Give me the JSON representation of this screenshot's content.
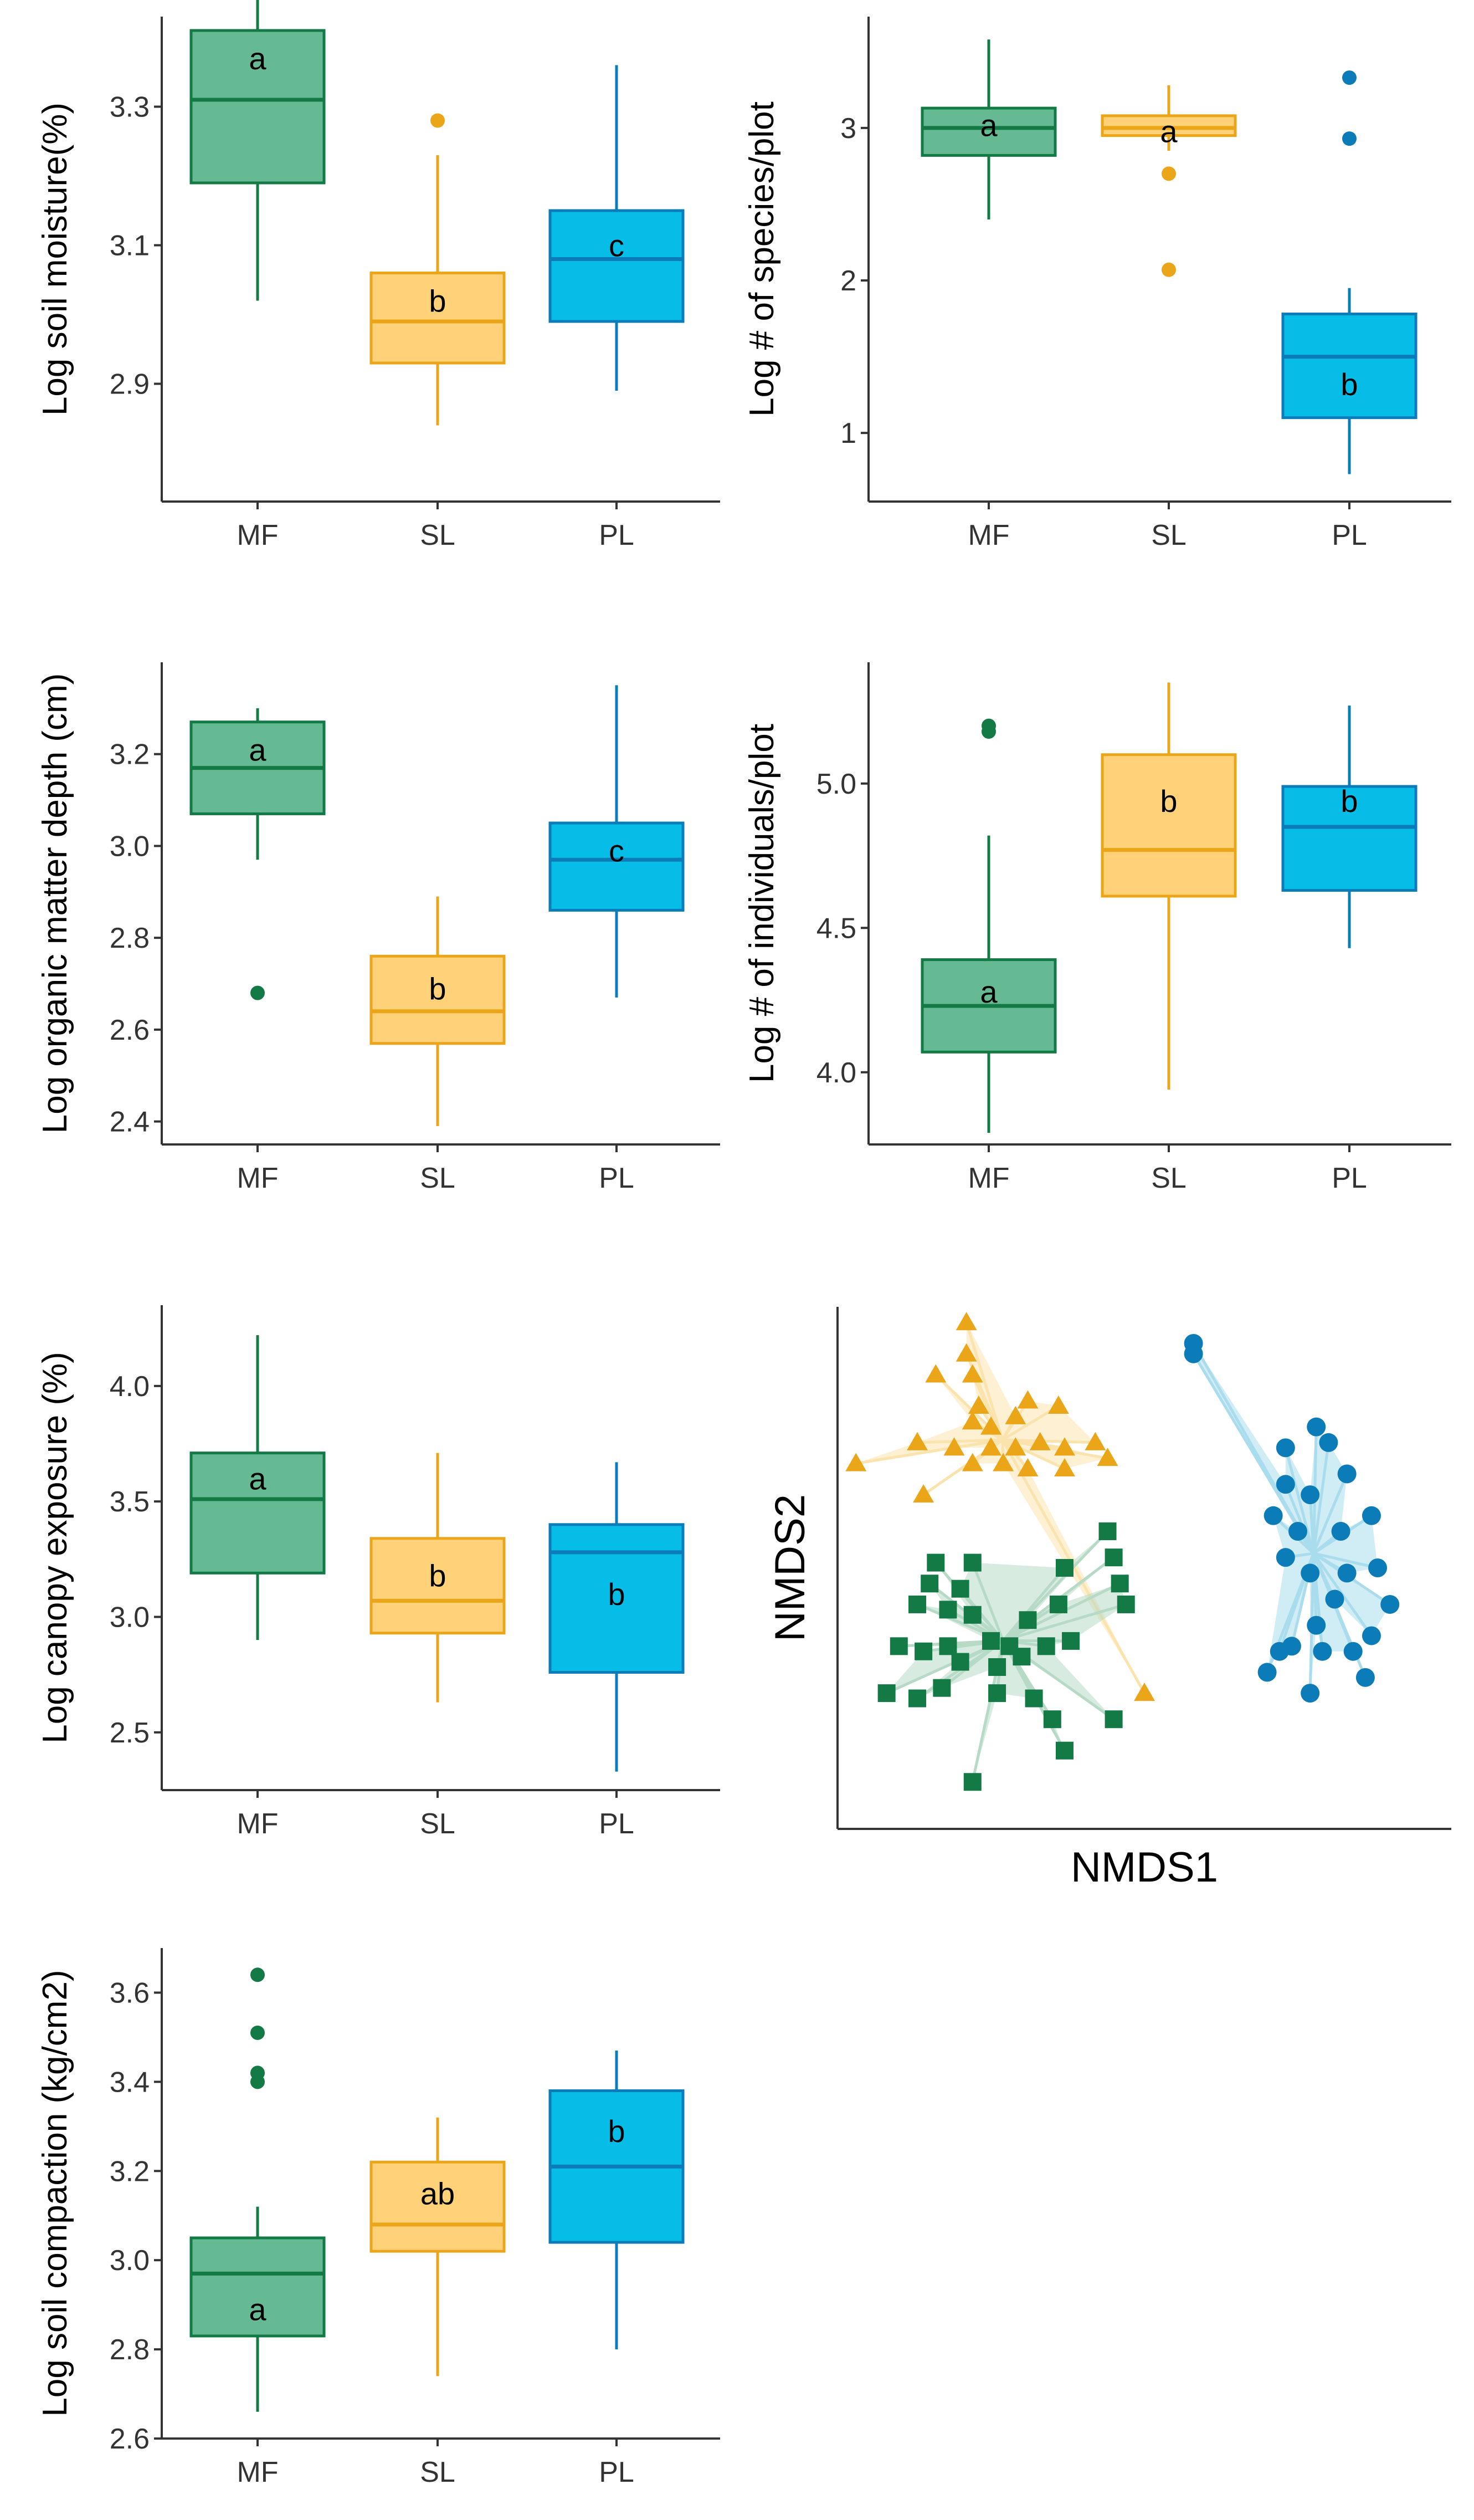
{
  "colors": {
    "MF": {
      "fill": "#65b993",
      "line": "#137a45",
      "hull": "#b7dac7"
    },
    "SL": {
      "fill": "#ffd27a",
      "line": "#eaa618",
      "hull": "#fbe3ae"
    },
    "PL": {
      "fill": "#06bde8",
      "line": "#0b7cb7",
      "hull": "#a9dced"
    }
  },
  "chart_data": [
    {
      "id": "soil-moisture",
      "type": "box",
      "ylabel": "Log soil moisture(%)",
      "categories": [
        "MF",
        "SL",
        "PL"
      ],
      "ylim": [
        2.73,
        3.43
      ],
      "yticks": [
        "2.9",
        "3.1",
        "3.3"
      ],
      "boxes": [
        {
          "group": "MF",
          "min": 3.02,
          "q1": 3.19,
          "median": 3.31,
          "q3": 3.41,
          "max": 3.46,
          "outliers": [],
          "letter": "a",
          "letter_y": 3.37
        },
        {
          "group": "SL",
          "min": 2.84,
          "q1": 2.93,
          "median": 2.99,
          "q3": 3.06,
          "max": 3.23,
          "outliers": [
            3.28
          ],
          "letter": "b",
          "letter_y": 3.02
        },
        {
          "group": "PL",
          "min": 2.89,
          "q1": 2.99,
          "median": 3.08,
          "q3": 3.15,
          "max": 3.36,
          "outliers": [],
          "letter": "c",
          "letter_y": 3.1
        }
      ]
    },
    {
      "id": "species-per-plot",
      "type": "box",
      "ylabel": "Log # of species/plot",
      "categories": [
        "MF",
        "SL",
        "PL"
      ],
      "ylim": [
        0.55,
        3.73
      ],
      "yticks": [
        "1",
        "2",
        "3"
      ],
      "boxes": [
        {
          "group": "MF",
          "min": 2.4,
          "q1": 2.82,
          "median": 3.0,
          "q3": 3.13,
          "max": 3.58,
          "outliers": [],
          "letter": "a",
          "letter_y": 3.02
        },
        {
          "group": "SL",
          "min": 2.85,
          "q1": 2.95,
          "median": 3.0,
          "q3": 3.08,
          "max": 3.28,
          "outliers": [
            2.7,
            2.07
          ],
          "letter": "a",
          "letter_y": 2.98
        },
        {
          "group": "PL",
          "min": 0.73,
          "q1": 1.1,
          "median": 1.5,
          "q3": 1.78,
          "max": 1.95,
          "outliers": [
            3.33,
            2.93
          ],
          "letter": "b",
          "letter_y": 1.32
        }
      ]
    },
    {
      "id": "organic-matter-depth",
      "type": "box",
      "ylabel": "Log organic matter depth (cm)",
      "categories": [
        "MF",
        "SL",
        "PL"
      ],
      "ylim": [
        2.35,
        3.4
      ],
      "yticks": [
        "2.4",
        "2.6",
        "2.8",
        "3.0",
        "3.2"
      ],
      "boxes": [
        {
          "group": "MF",
          "min": 2.97,
          "q1": 3.07,
          "median": 3.17,
          "q3": 3.27,
          "max": 3.3,
          "outliers": [
            2.68
          ],
          "letter": "a",
          "letter_y": 3.21
        },
        {
          "group": "SL",
          "min": 2.39,
          "q1": 2.57,
          "median": 2.64,
          "q3": 2.76,
          "max": 2.89,
          "outliers": [],
          "letter": "b",
          "letter_y": 2.69
        },
        {
          "group": "PL",
          "min": 2.67,
          "q1": 2.86,
          "median": 2.97,
          "q3": 3.05,
          "max": 3.35,
          "outliers": [],
          "letter": "c",
          "letter_y": 2.99
        }
      ]
    },
    {
      "id": "individuals-per-plot",
      "type": "box",
      "ylabel": "Log # of individuals/plot",
      "categories": [
        "MF",
        "SL",
        "PL"
      ],
      "ylim": [
        3.75,
        5.42
      ],
      "yticks": [
        "4.0",
        "4.5",
        "5.0"
      ],
      "boxes": [
        {
          "group": "MF",
          "min": 3.79,
          "q1": 4.07,
          "median": 4.23,
          "q3": 4.39,
          "max": 4.82,
          "outliers": [
            5.2,
            5.18
          ],
          "letter": "a",
          "letter_y": 4.28
        },
        {
          "group": "SL",
          "min": 3.94,
          "q1": 4.61,
          "median": 4.77,
          "q3": 5.1,
          "max": 5.35,
          "outliers": [],
          "letter": "b",
          "letter_y": 4.94
        },
        {
          "group": "PL",
          "min": 4.43,
          "q1": 4.63,
          "median": 4.85,
          "q3": 4.99,
          "max": 5.27,
          "outliers": [],
          "letter": "b",
          "letter_y": 4.94
        }
      ]
    },
    {
      "id": "canopy-exposure",
      "type": "box",
      "ylabel": "Log canopy exposure (%)",
      "categories": [
        "MF",
        "SL",
        "PL"
      ],
      "ylim": [
        2.25,
        4.35
      ],
      "yticks": [
        "2.5",
        "3.0",
        "3.5",
        "4.0"
      ],
      "boxes": [
        {
          "group": "MF",
          "min": 2.9,
          "q1": 3.19,
          "median": 3.51,
          "q3": 3.71,
          "max": 4.22,
          "outliers": [],
          "letter": "a",
          "letter_y": 3.6
        },
        {
          "group": "SL",
          "min": 2.63,
          "q1": 2.93,
          "median": 3.07,
          "q3": 3.34,
          "max": 3.71,
          "outliers": [],
          "letter": "b",
          "letter_y": 3.18
        },
        {
          "group": "PL",
          "min": 2.33,
          "q1": 2.76,
          "median": 3.28,
          "q3": 3.4,
          "max": 3.67,
          "outliers": [],
          "letter": "b",
          "letter_y": 3.1
        }
      ]
    },
    {
      "id": "soil-compaction",
      "type": "box",
      "ylabel": "Log soil compaction (kg/cm2)",
      "categories": [
        "MF",
        "SL",
        "PL"
      ],
      "ylim": [
        2.6,
        3.7
      ],
      "yticks": [
        "2.6",
        "2.8",
        "3.0",
        "3.2",
        "3.4",
        "3.6"
      ],
      "boxes": [
        {
          "group": "MF",
          "min": 2.66,
          "q1": 2.83,
          "median": 2.97,
          "q3": 3.05,
          "max": 3.12,
          "outliers": [
            3.64,
            3.51,
            3.42,
            3.4
          ],
          "letter": "a",
          "letter_y": 2.89
        },
        {
          "group": "SL",
          "min": 2.74,
          "q1": 3.02,
          "median": 3.08,
          "q3": 3.22,
          "max": 3.32,
          "outliers": [],
          "letter": "ab",
          "letter_y": 3.15
        },
        {
          "group": "PL",
          "min": 2.8,
          "q1": 3.04,
          "median": 3.21,
          "q3": 3.38,
          "max": 3.47,
          "outliers": [],
          "letter": "b",
          "letter_y": 3.29
        }
      ]
    },
    {
      "id": "nmds",
      "type": "scatter",
      "xlabel": "NMDS1",
      "ylabel": "NMDS2",
      "xlim": [
        0,
        1
      ],
      "ylim": [
        0,
        1
      ],
      "series": [
        {
          "name": "SL",
          "marker": "triangle",
          "points": [
            [
              0.21,
              0.97
            ],
            [
              0.21,
              0.91
            ],
            [
              0.22,
              0.87
            ],
            [
              0.16,
              0.87
            ],
            [
              0.23,
              0.81
            ],
            [
              0.31,
              0.82
            ],
            [
              0.36,
              0.81
            ],
            [
              0.22,
              0.78
            ],
            [
              0.25,
              0.77
            ],
            [
              0.29,
              0.79
            ],
            [
              0.13,
              0.74
            ],
            [
              0.19,
              0.73
            ],
            [
              0.25,
              0.73
            ],
            [
              0.29,
              0.73
            ],
            [
              0.33,
              0.74
            ],
            [
              0.37,
              0.73
            ],
            [
              0.42,
              0.74
            ],
            [
              0.44,
              0.71
            ],
            [
              0.22,
              0.7
            ],
            [
              0.27,
              0.7
            ],
            [
              0.31,
              0.69
            ],
            [
              0.37,
              0.69
            ],
            [
              0.03,
              0.7
            ],
            [
              0.14,
              0.64
            ],
            [
              0.5,
              0.26
            ]
          ]
        },
        {
          "name": "MF",
          "marker": "square",
          "points": [
            [
              0.16,
              0.51
            ],
            [
              0.22,
              0.51
            ],
            [
              0.15,
              0.47
            ],
            [
              0.2,
              0.46
            ],
            [
              0.37,
              0.5
            ],
            [
              0.44,
              0.57
            ],
            [
              0.45,
              0.52
            ],
            [
              0.46,
              0.47
            ],
            [
              0.13,
              0.43
            ],
            [
              0.18,
              0.42
            ],
            [
              0.22,
              0.41
            ],
            [
              0.31,
              0.4
            ],
            [
              0.36,
              0.43
            ],
            [
              0.47,
              0.43
            ],
            [
              0.1,
              0.35
            ],
            [
              0.14,
              0.34
            ],
            [
              0.18,
              0.35
            ],
            [
              0.25,
              0.36
            ],
            [
              0.28,
              0.35
            ],
            [
              0.34,
              0.35
            ],
            [
              0.38,
              0.36
            ],
            [
              0.2,
              0.32
            ],
            [
              0.26,
              0.31
            ],
            [
              0.3,
              0.33
            ],
            [
              0.08,
              0.26
            ],
            [
              0.13,
              0.25
            ],
            [
              0.17,
              0.27
            ],
            [
              0.26,
              0.26
            ],
            [
              0.32,
              0.25
            ],
            [
              0.35,
              0.21
            ],
            [
              0.45,
              0.21
            ],
            [
              0.37,
              0.15
            ],
            [
              0.22,
              0.09
            ]
          ]
        },
        {
          "name": "PL",
          "marker": "circle",
          "points": [
            [
              0.58,
              0.93
            ],
            [
              0.58,
              0.91
            ],
            [
              0.73,
              0.73
            ],
            [
              0.78,
              0.77
            ],
            [
              0.8,
              0.74
            ],
            [
              0.83,
              0.68
            ],
            [
              0.73,
              0.66
            ],
            [
              0.77,
              0.64
            ],
            [
              0.71,
              0.6
            ],
            [
              0.75,
              0.57
            ],
            [
              0.82,
              0.57
            ],
            [
              0.87,
              0.6
            ],
            [
              0.73,
              0.52
            ],
            [
              0.77,
              0.49
            ],
            [
              0.83,
              0.49
            ],
            [
              0.88,
              0.5
            ],
            [
              0.81,
              0.44
            ],
            [
              0.78,
              0.39
            ],
            [
              0.9,
              0.43
            ],
            [
              0.72,
              0.34
            ],
            [
              0.79,
              0.34
            ],
            [
              0.87,
              0.37
            ],
            [
              0.7,
              0.3
            ],
            [
              0.84,
              0.34
            ],
            [
              0.86,
              0.29
            ],
            [
              0.77,
              0.26
            ],
            [
              0.74,
              0.35
            ]
          ]
        }
      ]
    }
  ]
}
